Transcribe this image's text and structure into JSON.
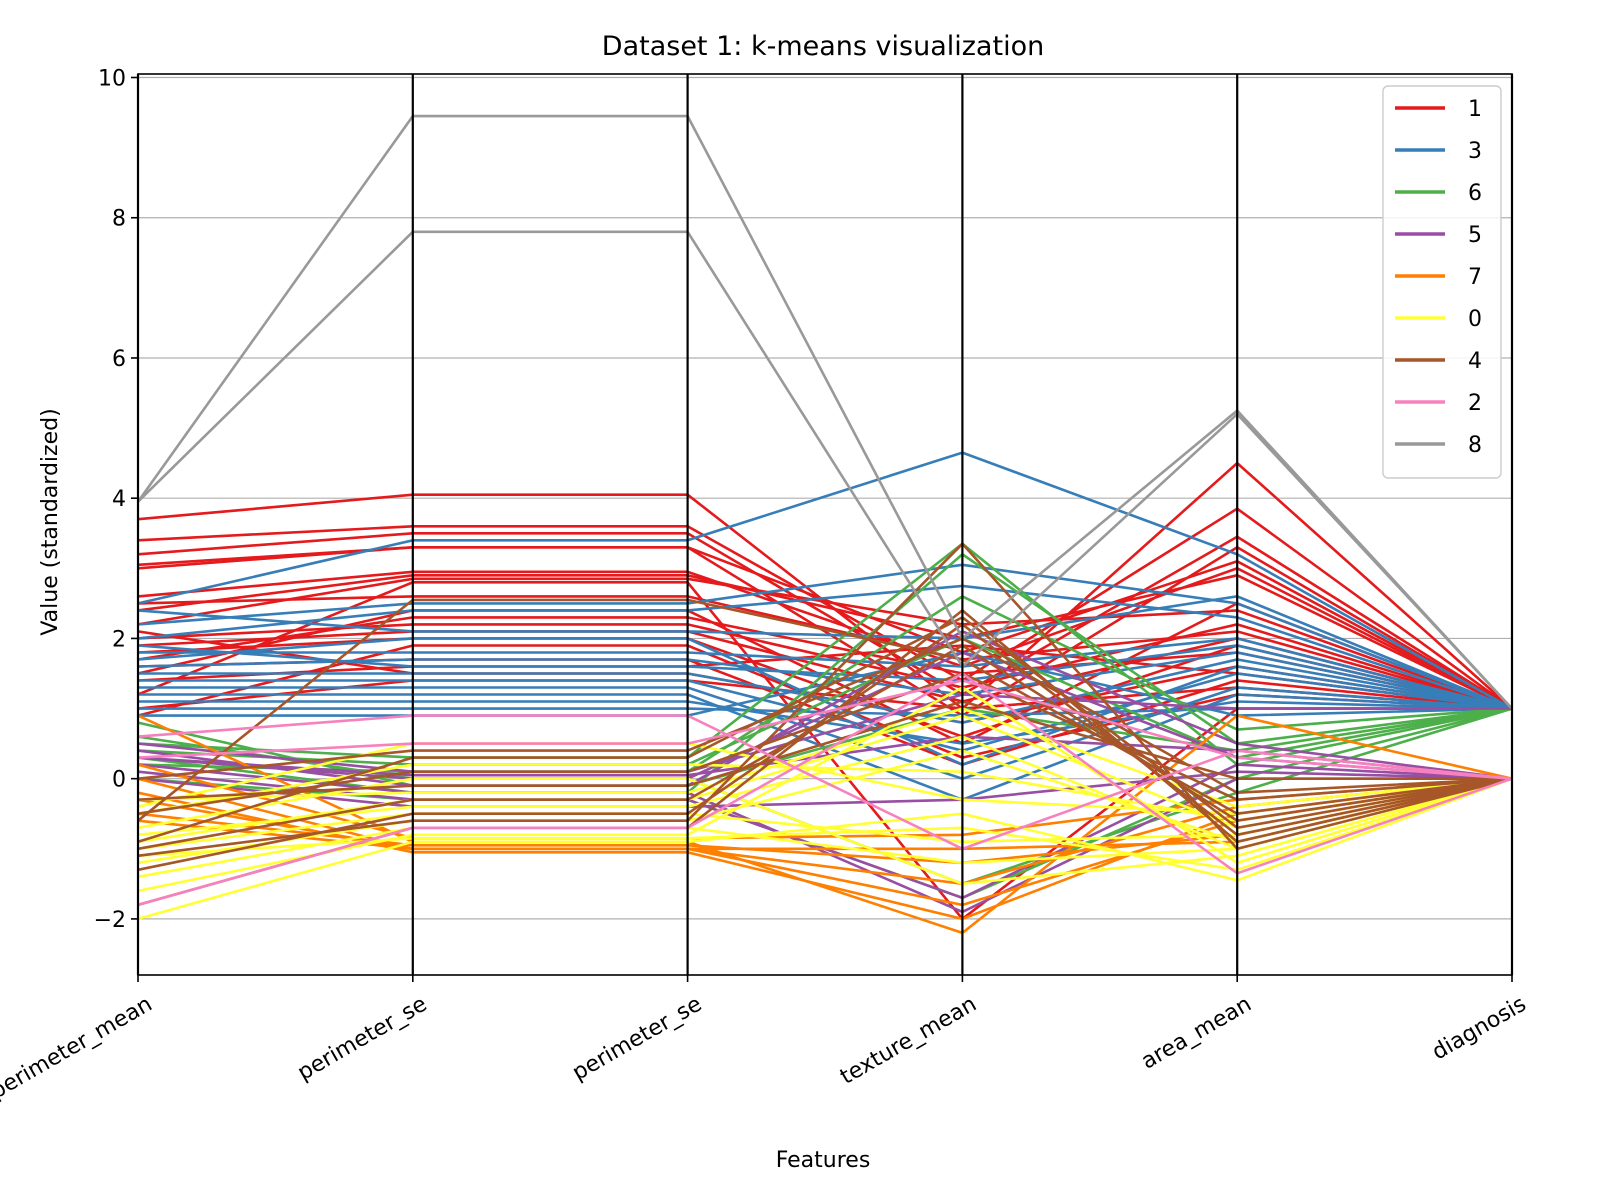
{
  "chart_data": {
    "type": "parallel_coordinates",
    "title": "Dataset 1: k-means visualization",
    "xlabel": "Features",
    "ylabel": "Value (standardized)",
    "categories": [
      "perimeter_mean",
      "perimeter_se",
      "perimeter_se",
      "texture_mean",
      "area_mean",
      "diagnosis"
    ],
    "ylim": [
      -2.8,
      10.05
    ],
    "yticks": [
      -2,
      0,
      2,
      4,
      6,
      8,
      10
    ],
    "ytick_labels": [
      "−2",
      "0",
      "2",
      "4",
      "6",
      "8",
      "10"
    ],
    "grid": "horizontal",
    "legend_position": "top-right",
    "legend": [
      {
        "label": "1",
        "color": "#e41a1c"
      },
      {
        "label": "3",
        "color": "#377eb8"
      },
      {
        "label": "6",
        "color": "#4daf4a"
      },
      {
        "label": "5",
        "color": "#984ea3"
      },
      {
        "label": "7",
        "color": "#ff7f00"
      },
      {
        "label": "0",
        "color": "#ffff33"
      },
      {
        "label": "4",
        "color": "#a65628"
      },
      {
        "label": "2",
        "color": "#f781bf"
      },
      {
        "label": "8",
        "color": "#999999"
      }
    ],
    "series": [
      {
        "cluster": "1",
        "color": "#e41a1c",
        "lines": [
          [
            3.7,
            4.05,
            4.05,
            1.0,
            4.5,
            1
          ],
          [
            3.4,
            3.6,
            3.6,
            1.4,
            3.85,
            1
          ],
          [
            3.2,
            3.5,
            3.5,
            1.2,
            3.45,
            1
          ],
          [
            3.0,
            3.3,
            3.3,
            0.9,
            3.3,
            1
          ],
          [
            2.6,
            2.95,
            2.95,
            1.6,
            3.0,
            1
          ],
          [
            2.4,
            2.9,
            2.9,
            2.0,
            2.9,
            1
          ],
          [
            2.2,
            2.85,
            2.85,
            2.2,
            2.4,
            1
          ],
          [
            2.0,
            2.2,
            2.2,
            1.3,
            2.2,
            1
          ],
          [
            1.9,
            2.1,
            2.1,
            1.1,
            2.0,
            1
          ],
          [
            1.8,
            2.0,
            2.0,
            0.6,
            1.9,
            1
          ],
          [
            1.7,
            2.3,
            2.3,
            1.5,
            1.8,
            1
          ],
          [
            2.1,
            1.5,
            1.5,
            0.8,
            1.6,
            1
          ],
          [
            1.5,
            2.4,
            2.4,
            0.5,
            2.5,
            1
          ],
          [
            1.4,
            1.6,
            1.6,
            1.9,
            1.5,
            1
          ],
          [
            1.2,
            2.8,
            2.8,
            -2.0,
            1.0,
            1
          ],
          [
            1.0,
            1.4,
            1.4,
            1.0,
            1.3,
            1
          ],
          [
            0.9,
            1.9,
            1.9,
            0.3,
            1.2,
            1
          ],
          [
            2.5,
            2.6,
            2.6,
            1.7,
            2.1,
            1
          ],
          [
            1.6,
            1.7,
            1.7,
            0.2,
            1.4,
            1
          ],
          [
            3.05,
            3.3,
            3.3,
            1.8,
            3.1,
            1
          ]
        ]
      },
      {
        "cluster": "3",
        "color": "#377eb8",
        "lines": [
          [
            2.5,
            3.4,
            3.4,
            4.65,
            3.2,
            1
          ],
          [
            2.2,
            2.5,
            2.5,
            3.05,
            2.5,
            1
          ],
          [
            2.0,
            2.4,
            2.4,
            2.75,
            2.3,
            1
          ],
          [
            1.8,
            1.8,
            1.8,
            1.6,
            2.0,
            1
          ],
          [
            1.6,
            1.7,
            1.7,
            1.2,
            1.8,
            1
          ],
          [
            1.5,
            1.5,
            1.5,
            0.8,
            1.7,
            1
          ],
          [
            1.4,
            1.4,
            1.4,
            0.4,
            1.5,
            1
          ],
          [
            1.3,
            1.3,
            1.3,
            0.0,
            1.3,
            1
          ],
          [
            1.2,
            1.2,
            1.2,
            -0.3,
            1.2,
            1
          ],
          [
            1.1,
            1.1,
            1.1,
            0.5,
            1.1,
            1
          ],
          [
            1.0,
            1.0,
            1.0,
            0.9,
            1.0,
            1
          ],
          [
            1.9,
            1.6,
            1.6,
            1.4,
            1.9,
            1
          ],
          [
            1.7,
            2.0,
            2.0,
            0.2,
            1.6,
            1
          ],
          [
            0.9,
            0.9,
            0.9,
            1.8,
            0.9,
            1
          ],
          [
            2.4,
            2.1,
            2.1,
            2.0,
            2.6,
            1
          ]
        ]
      },
      {
        "cluster": "6",
        "color": "#4daf4a",
        "lines": [
          [
            0.5,
            0.3,
            0.3,
            3.35,
            0.2,
            1
          ],
          [
            0.3,
            -0.2,
            -0.2,
            3.2,
            0.5,
            1
          ],
          [
            0.2,
            0.1,
            0.1,
            2.6,
            0.7,
            1
          ],
          [
            0.6,
            0.0,
            0.0,
            -1.5,
            -0.2,
            1
          ],
          [
            0.0,
            -0.3,
            -0.3,
            -1.7,
            0.0,
            1
          ],
          [
            0.4,
            0.2,
            0.2,
            2.0,
            0.3,
            1
          ],
          [
            0.8,
            -0.1,
            -0.1,
            1.0,
            0.4,
            1
          ]
        ]
      },
      {
        "cluster": "5",
        "color": "#984ea3",
        "lines": [
          [
            0.4,
            -0.1,
            -0.1,
            2.1,
            0.5,
            0
          ],
          [
            0.3,
            0.0,
            0.0,
            1.8,
            0.3,
            0
          ],
          [
            0.2,
            -0.2,
            -0.2,
            -1.9,
            0.0,
            0
          ],
          [
            0.1,
            -0.3,
            -0.3,
            -1.7,
            0.2,
            0
          ],
          [
            0.5,
            0.1,
            0.1,
            1.2,
            1.0,
            1
          ],
          [
            0.0,
            -0.4,
            -0.4,
            -0.3,
            0.1,
            0
          ],
          [
            0.3,
            0.05,
            0.05,
            0.6,
            0.4,
            0
          ]
        ]
      },
      {
        "cluster": "7",
        "color": "#ff7f00",
        "lines": [
          [
            0.9,
            -0.9,
            -0.9,
            -2.2,
            0.9,
            0
          ],
          [
            0.0,
            -1.0,
            -1.0,
            -1.8,
            -0.6,
            0
          ],
          [
            -0.3,
            -1.0,
            -1.0,
            -1.5,
            -0.4,
            0
          ],
          [
            -0.5,
            -0.95,
            -0.95,
            -1.2,
            -0.8,
            0
          ],
          [
            -0.2,
            -1.05,
            -1.05,
            -2.0,
            -0.5,
            0
          ],
          [
            0.2,
            -0.85,
            -0.85,
            -0.8,
            -0.3,
            0
          ],
          [
            -0.6,
            -1.0,
            -1.0,
            -1.0,
            -0.9,
            0
          ]
        ]
      },
      {
        "cluster": "0",
        "color": "#ffff33",
        "lines": [
          [
            -2.0,
            -0.9,
            -0.9,
            -0.5,
            -1.45,
            0
          ],
          [
            -1.6,
            -0.8,
            -0.8,
            1.3,
            -1.2,
            0
          ],
          [
            -1.4,
            -0.7,
            -0.7,
            -1.2,
            -1.0,
            0
          ],
          [
            -1.2,
            -0.6,
            -0.6,
            0.4,
            -0.9,
            0
          ],
          [
            -1.0,
            -0.5,
            -0.5,
            -0.9,
            -0.8,
            0
          ],
          [
            -0.9,
            -0.3,
            -0.3,
            0.9,
            -0.7,
            0
          ],
          [
            -0.7,
            0.0,
            0.0,
            -1.5,
            -1.1,
            0
          ],
          [
            -0.5,
            0.2,
            0.2,
            0.1,
            -0.6,
            0
          ],
          [
            -0.4,
            0.5,
            0.5,
            -0.3,
            -0.5,
            0
          ],
          [
            -0.3,
            -0.2,
            -0.2,
            1.0,
            -0.4,
            0
          ],
          [
            -1.1,
            -0.85,
            -0.85,
            -0.7,
            -1.3,
            0
          ],
          [
            -0.8,
            -0.4,
            -0.4,
            0.6,
            -1.0,
            0
          ]
        ]
      },
      {
        "cluster": "4",
        "color": "#a65628",
        "lines": [
          [
            -1.8,
            -0.7,
            -0.7,
            2.4,
            -0.9,
            0
          ],
          [
            -1.3,
            -0.5,
            -0.5,
            2.2,
            -0.8,
            0
          ],
          [
            -1.0,
            -0.3,
            -0.3,
            1.9,
            -0.6,
            0
          ],
          [
            -0.9,
            0.3,
            0.3,
            2.3,
            -0.7,
            0
          ],
          [
            -0.6,
            2.55,
            2.55,
            1.7,
            -0.5,
            0
          ],
          [
            -0.5,
            0.1,
            0.1,
            1.5,
            -0.3,
            0
          ],
          [
            -0.3,
            -0.1,
            -0.1,
            1.1,
            0.0,
            0
          ],
          [
            0.0,
            0.4,
            0.4,
            2.0,
            -0.2,
            0
          ],
          [
            -1.1,
            -0.6,
            -0.6,
            3.35,
            -1.0,
            0
          ]
        ]
      },
      {
        "cluster": "2",
        "color": "#f781bf",
        "lines": [
          [
            -1.8,
            -0.7,
            -0.7,
            1.5,
            -1.35,
            0
          ],
          [
            0.3,
            0.5,
            0.5,
            1.4,
            0.3,
            0
          ],
          [
            0.6,
            0.9,
            0.9,
            -1.0,
            0.4,
            0
          ]
        ]
      },
      {
        "cluster": "8",
        "color": "#999999",
        "lines": [
          [
            3.95,
            9.45,
            9.45,
            2.0,
            5.25,
            1
          ],
          [
            3.95,
            7.8,
            7.8,
            1.6,
            5.2,
            1
          ]
        ]
      }
    ]
  }
}
